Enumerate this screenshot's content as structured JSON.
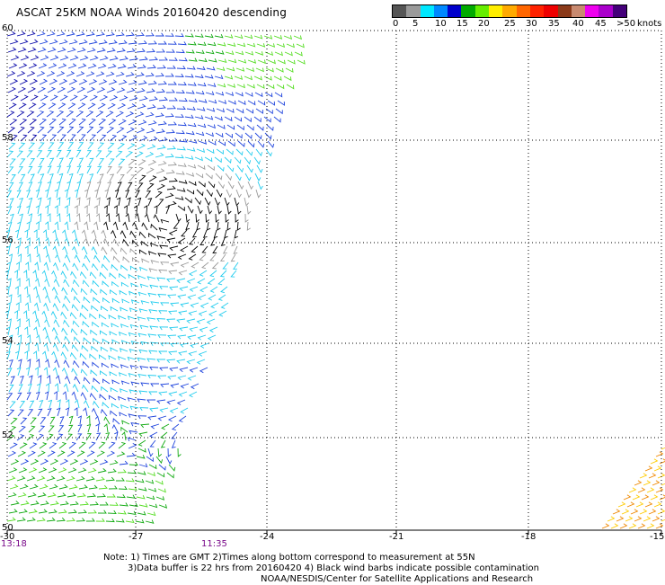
{
  "title": "ASCAT 25KM NOAA Winds 20160420 descending",
  "legend": {
    "unit": "knots",
    "labels": [
      "0",
      "5",
      "10",
      "15",
      "20",
      "25",
      "30",
      "35",
      "40",
      "45",
      ">50"
    ],
    "colors": [
      "#555555",
      "#9a9a9a",
      "#00e8ff",
      "#0088ff",
      "#0000cc",
      "#00aa00",
      "#66ee00",
      "#ffee00",
      "#ffaa00",
      "#ff6600",
      "#ff2200",
      "#ee0000",
      "#8b3a1a",
      "#c88a70",
      "#ee00ee",
      "#aa00cc",
      "#44007a"
    ]
  },
  "axes": {
    "lat_labels": [
      "60",
      "58",
      "56",
      "54",
      "52",
      "50"
    ],
    "lon_labels": [
      "-30",
      "-27",
      "-24",
      "-21",
      "-18",
      "-15"
    ]
  },
  "times": [
    "13:18",
    "11:35"
  ],
  "notes": [
    "Note: 1) Times are GMT 2)Times along bottom correspond to measurement at 55N",
    "3)Data buffer is 22 hrs from 20160420 4) Black wind barbs indicate possible contamination",
    "NOAA/NESDIS/Center for Satellite Applications and Research"
  ],
  "colors": {
    "calm": "#000000",
    "light": "#9a9a9a",
    "cyan": "#22ccee",
    "blue": "#1f44dd",
    "navy": "#0a0aaa",
    "green": "#11aa11",
    "lightgreen": "#55dd22",
    "orange": "#ee8800",
    "yellow": "#ffcc00"
  }
}
